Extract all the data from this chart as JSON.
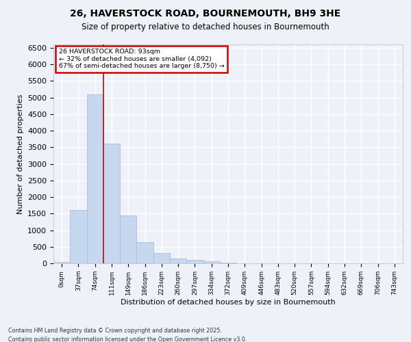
{
  "title_line1": "26, HAVERSTOCK ROAD, BOURNEMOUTH, BH9 3HE",
  "title_line2": "Size of property relative to detached houses in Bournemouth",
  "xlabel": "Distribution of detached houses by size in Bournemouth",
  "ylabel": "Number of detached properties",
  "bar_color": "#c5d8f0",
  "bar_edge_color": "#a0b8d8",
  "background_color": "#eef2f8",
  "grid_color": "#ffffff",
  "bin_labels": [
    "0sqm",
    "37sqm",
    "74sqm",
    "111sqm",
    "149sqm",
    "186sqm",
    "223sqm",
    "260sqm",
    "297sqm",
    "334sqm",
    "372sqm",
    "409sqm",
    "446sqm",
    "483sqm",
    "520sqm",
    "557sqm",
    "594sqm",
    "632sqm",
    "669sqm",
    "706sqm",
    "743sqm"
  ],
  "bar_values": [
    50,
    1600,
    5100,
    3600,
    1450,
    630,
    300,
    150,
    100,
    60,
    20,
    5,
    3,
    2,
    1,
    1,
    0,
    0,
    0,
    0,
    0
  ],
  "ylim": [
    0,
    6600
  ],
  "yticks": [
    0,
    500,
    1000,
    1500,
    2000,
    2500,
    3000,
    3500,
    4000,
    4500,
    5000,
    5500,
    6000,
    6500
  ],
  "vline_x": 2.5,
  "annotation_title": "26 HAVERSTOCK ROAD: 93sqm",
  "annotation_line2": "← 32% of detached houses are smaller (4,092)",
  "annotation_line3": "67% of semi-detached houses are larger (8,750) →",
  "annotation_box_color": "#ffffff",
  "annotation_box_edge": "#cc0000",
  "footer_line1": "Contains HM Land Registry data © Crown copyright and database right 2025.",
  "footer_line2": "Contains public sector information licensed under the Open Government Licence v3.0.",
  "vline_color": "#cc0000"
}
